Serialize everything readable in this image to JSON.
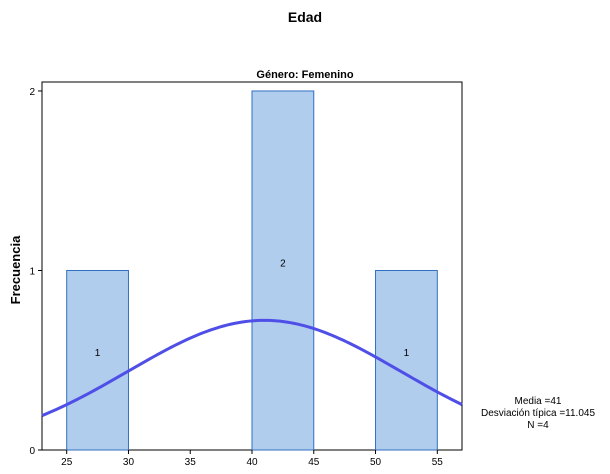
{
  "chart_data": {
    "type": "histogram",
    "title": "Edad",
    "panel_title": "Género: Femenino",
    "ylabel": "Frecuencia",
    "xlabel": "",
    "xlim": [
      23,
      57
    ],
    "ylim": [
      0,
      2.05
    ],
    "xticks": [
      "25",
      "30",
      "35",
      "40",
      "45",
      "50",
      "55"
    ],
    "yticks": [
      "0",
      "1",
      "2"
    ],
    "bins": [
      {
        "start": 25,
        "end": 30,
        "count": 1,
        "label": "1"
      },
      {
        "start": 40,
        "end": 45,
        "count": 2,
        "label": "2"
      },
      {
        "start": 50,
        "end": 55,
        "count": 1,
        "label": "1"
      }
    ],
    "normal_curve": {
      "mean": 41,
      "sd": 11.045,
      "n": 4,
      "bin_width": 5
    },
    "stats": {
      "mean_label": "Media =41",
      "sd_label": "Desviación típica =11.045",
      "n_label": "N =4"
    },
    "colors": {
      "bar_fill": "#b0cdee",
      "bar_stroke": "#2f6fc0",
      "curve": "#4f4fe8"
    }
  }
}
